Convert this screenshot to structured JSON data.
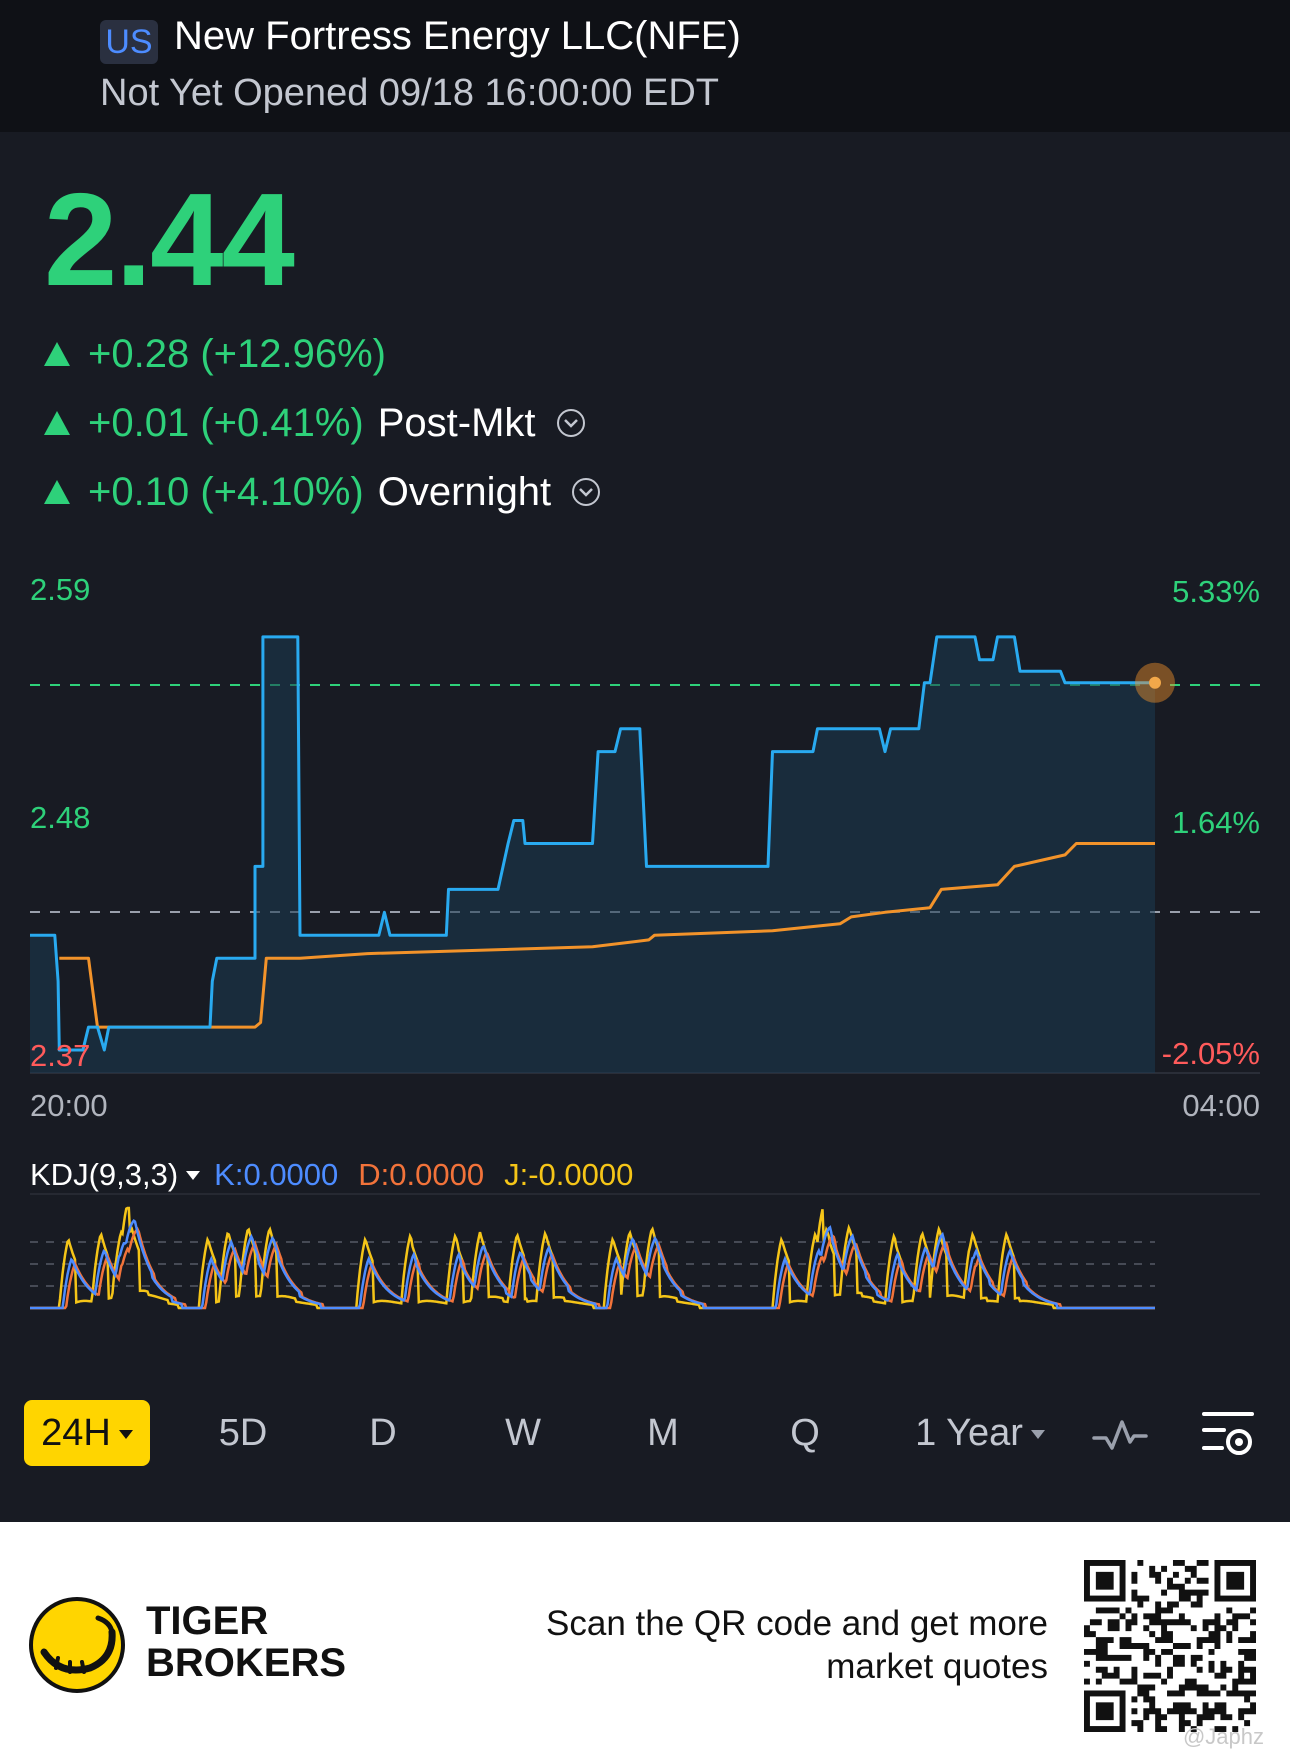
{
  "header": {
    "market_badge": "US",
    "stock_name": "New Fortress Energy LLC(NFE)",
    "status": "Not Yet Opened 09/18 16:00:00 EDT"
  },
  "quote": {
    "price": "2.44",
    "change_regular": "+0.28 (+12.96%)",
    "change_post": "+0.01 (+0.41%)",
    "post_label": "Post-Mkt",
    "change_overnight": "+0.10 (+4.10%)",
    "overnight_label": "Overnight"
  },
  "chart_axis": {
    "y_top": "2.59",
    "y_mid": "2.48",
    "y_bottom": "2.37",
    "pct_top": "5.33%",
    "pct_mid": "1.64%",
    "pct_bottom": "-2.05%",
    "x_start": "20:00",
    "x_end": "04:00"
  },
  "indicator": {
    "name": "KDJ(9,3,3)",
    "k": "K:0.0000",
    "d": "D:0.0000",
    "j": "J:-0.0000"
  },
  "tabs": [
    "24H",
    "5D",
    "D",
    "W",
    "M",
    "Q",
    "1 Year"
  ],
  "footer": {
    "brand_line1": "TIGER",
    "brand_line2": "BROKERS",
    "promo_line1": "Scan the QR code and get more",
    "promo_line2": "market quotes",
    "watermark": "@Japhz"
  },
  "colors": {
    "up": "#2ed17a",
    "down": "#ff5b5b",
    "price_line": "#29aaf0",
    "avg_line": "#f2932a",
    "k_line": "#4d8cff",
    "d_line": "#f2733a",
    "j_line": "#f5c518",
    "active_tab": "#ffd500"
  },
  "chart_data": {
    "type": "line",
    "x_range": [
      "20:00",
      "04:00"
    ],
    "ylim": [
      2.37,
      2.59
    ],
    "pct_range": [
      "-2.05%",
      "5.33%"
    ],
    "reference_prev_close": 2.43,
    "current_price": 2.54,
    "series": [
      {
        "name": "",
        "color": "#29aaf0",
        "points": [
          [
            0,
            2.43
          ],
          [
            0.022,
            2.43
          ],
          [
            0.025,
            2.41
          ],
          [
            0.026,
            2.38
          ],
          [
            0.047,
            2.38
          ],
          [
            0.052,
            2.39
          ],
          [
            0.06,
            2.39
          ],
          [
            0.066,
            2.38
          ],
          [
            0.07,
            2.39
          ],
          [
            0.16,
            2.39
          ],
          [
            0.162,
            2.41
          ],
          [
            0.166,
            2.42
          ],
          [
            0.2,
            2.42
          ],
          [
            0.2,
            2.46
          ],
          [
            0.207,
            2.46
          ],
          [
            0.207,
            2.56
          ],
          [
            0.238,
            2.56
          ],
          [
            0.24,
            2.43
          ],
          [
            0.31,
            2.43
          ],
          [
            0.315,
            2.44
          ],
          [
            0.32,
            2.43
          ],
          [
            0.37,
            2.43
          ],
          [
            0.372,
            2.45
          ],
          [
            0.416,
            2.45
          ],
          [
            0.425,
            2.47
          ],
          [
            0.43,
            2.48
          ],
          [
            0.438,
            2.48
          ],
          [
            0.44,
            2.47
          ],
          [
            0.5,
            2.47
          ],
          [
            0.505,
            2.51
          ],
          [
            0.52,
            2.51
          ],
          [
            0.525,
            2.52
          ],
          [
            0.542,
            2.52
          ],
          [
            0.548,
            2.46
          ],
          [
            0.656,
            2.46
          ],
          [
            0.66,
            2.51
          ],
          [
            0.696,
            2.51
          ],
          [
            0.7,
            2.52
          ],
          [
            0.755,
            2.52
          ],
          [
            0.76,
            2.51
          ],
          [
            0.765,
            2.52
          ],
          [
            0.79,
            2.52
          ],
          [
            0.795,
            2.54
          ],
          [
            0.8,
            2.54
          ],
          [
            0.806,
            2.56
          ],
          [
            0.84,
            2.56
          ],
          [
            0.844,
            2.55
          ],
          [
            0.856,
            2.55
          ],
          [
            0.86,
            2.56
          ],
          [
            0.875,
            2.56
          ],
          [
            0.88,
            2.545
          ],
          [
            0.916,
            2.545
          ],
          [
            0.92,
            2.54
          ],
          [
            1.0,
            2.54
          ]
        ]
      },
      {
        "name": "",
        "color": "#f2932a",
        "points": [
          [
            0.026,
            2.42
          ],
          [
            0.052,
            2.42
          ],
          [
            0.06,
            2.39
          ],
          [
            0.2,
            2.39
          ],
          [
            0.205,
            2.392
          ],
          [
            0.21,
            2.42
          ],
          [
            0.24,
            2.42
          ],
          [
            0.3,
            2.422
          ],
          [
            0.5,
            2.425
          ],
          [
            0.55,
            2.428
          ],
          [
            0.555,
            2.43
          ],
          [
            0.66,
            2.432
          ],
          [
            0.72,
            2.435
          ],
          [
            0.73,
            2.438
          ],
          [
            0.76,
            2.44
          ],
          [
            0.8,
            2.442
          ],
          [
            0.81,
            2.45
          ],
          [
            0.86,
            2.452
          ],
          [
            0.875,
            2.46
          ],
          [
            0.92,
            2.465
          ],
          [
            0.93,
            2.47
          ],
          [
            1.0,
            2.47
          ]
        ]
      }
    ]
  }
}
